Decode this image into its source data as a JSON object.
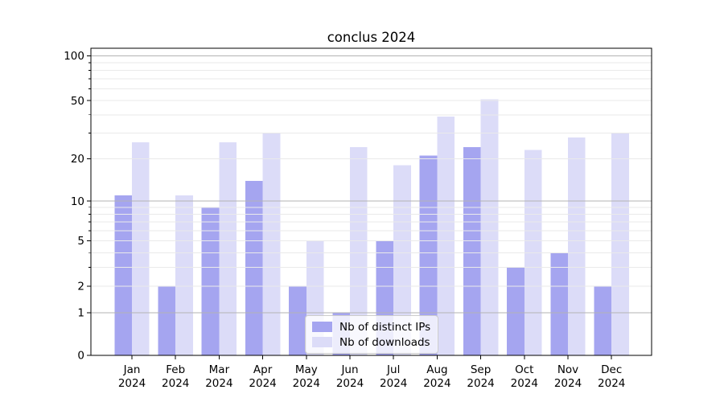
{
  "chart_data": {
    "type": "bar",
    "title": "conclus 2024",
    "categories": [
      "Jan",
      "Feb",
      "Mar",
      "Apr",
      "May",
      "Jun",
      "Jul",
      "Aug",
      "Sep",
      "Oct",
      "Nov",
      "Dec"
    ],
    "category_year": "2024",
    "series": [
      {
        "name": "Nb of distinct IPs",
        "color": "#a5a5f0",
        "values": [
          11,
          2,
          9,
          14,
          2,
          1,
          5,
          21,
          24,
          3,
          4,
          2
        ]
      },
      {
        "name": "Nb of downloads",
        "color": "#dcdcf8",
        "values": [
          26,
          11,
          26,
          30,
          5,
          24,
          18,
          39,
          51,
          23,
          28,
          30
        ]
      }
    ],
    "xlabel": "",
    "ylabel": "",
    "yscale": "log1p",
    "ylim": [
      0,
      112
    ],
    "ytick_labels_top_to_bottom": [
      "100",
      "50",
      "20",
      "10",
      "5",
      "2",
      "1",
      "0"
    ],
    "ytick_values_labeled": [
      100,
      50,
      20,
      10,
      5,
      2,
      1,
      0
    ],
    "ytick_values_major": [
      100,
      10,
      1,
      0
    ],
    "ytick_values_minor_labeled": [
      50,
      20,
      5,
      2
    ],
    "ytick_values_minor_unlabeled": [
      90,
      80,
      70,
      60,
      40,
      30,
      9,
      8,
      7,
      6,
      4,
      3
    ],
    "grid": "major and minor horizontal gridlines, drawn above bars",
    "legend": {
      "entries": [
        "Nb of distinct IPs",
        "Nb of downloads"
      ],
      "position": "inside plot, lower center"
    }
  },
  "colors": {
    "background": "#ffffff",
    "bar_distinct_ips": "#a5a5f0",
    "bar_downloads": "#dcdcf8",
    "grid_major": "#b3b3b3",
    "grid_minor": "#eaeaea",
    "axis": "#000000",
    "legend_border": "#cccccc",
    "text": "#000000"
  }
}
